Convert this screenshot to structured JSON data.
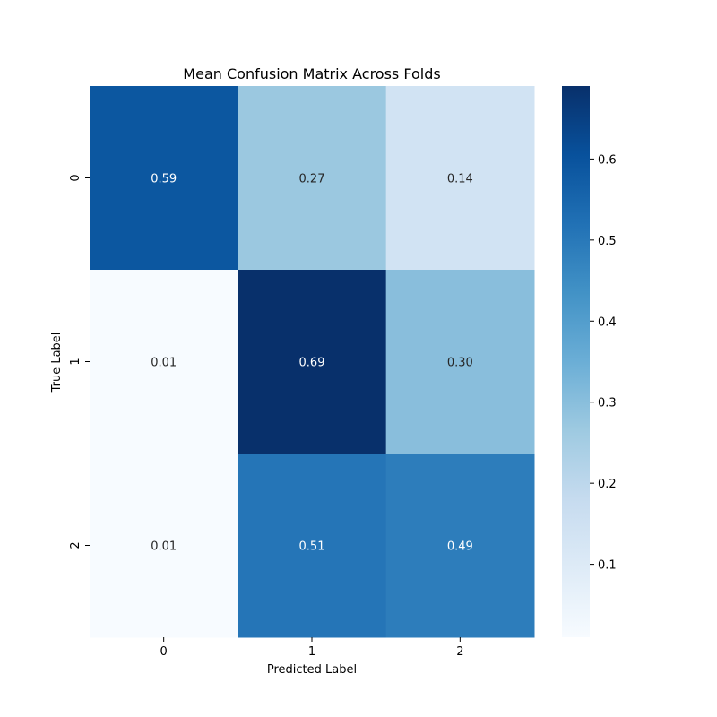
{
  "chart_data": {
    "type": "heatmap",
    "title": "Mean Confusion Matrix Across Folds",
    "xlabel": "Predicted Label",
    "ylabel": "True Label",
    "x_categories": [
      "0",
      "1",
      "2"
    ],
    "y_categories": [
      "0",
      "1",
      "2"
    ],
    "values": [
      [
        0.59,
        0.27,
        0.14
      ],
      [
        0.01,
        0.69,
        0.3
      ],
      [
        0.01,
        0.51,
        0.49
      ]
    ],
    "value_labels": [
      [
        "0.59",
        "0.27",
        "0.14"
      ],
      [
        "0.01",
        "0.69",
        "0.30"
      ],
      [
        "0.01",
        "0.51",
        "0.49"
      ]
    ],
    "colorscale": "Blues",
    "colorbar": {
      "range": [
        0.01,
        0.69
      ],
      "ticks": [
        0.1,
        0.2,
        0.3,
        0.4,
        0.5,
        0.6
      ],
      "tick_labels": [
        "0.1",
        "0.2",
        "0.3",
        "0.4",
        "0.5",
        "0.6"
      ]
    }
  }
}
